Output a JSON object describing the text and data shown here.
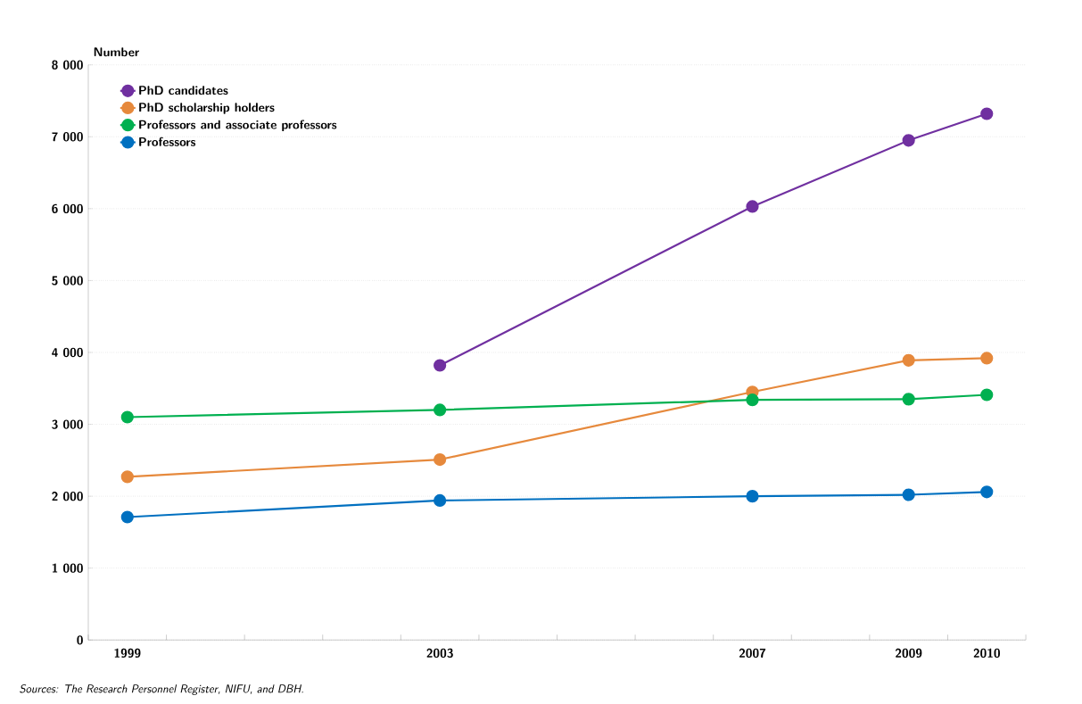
{
  "chart_data": {
    "type": "line",
    "categories": [
      "1999",
      null,
      null,
      null,
      "2003",
      null,
      null,
      null,
      "2007",
      null,
      "2009",
      "2010"
    ],
    "series": [
      {
        "name": "PhD candidates",
        "color": "#7030a0",
        "values": [
          null,
          null,
          null,
          null,
          3820,
          null,
          null,
          null,
          6030,
          null,
          6950,
          7320
        ]
      },
      {
        "name": "PhD scholarship holders",
        "color": "#e6893c",
        "values": [
          2270,
          null,
          null,
          null,
          2510,
          null,
          null,
          null,
          3450,
          null,
          3890,
          3920
        ]
      },
      {
        "name": "Professors and associate professors",
        "color": "#00b050",
        "values": [
          3100,
          null,
          null,
          null,
          3200,
          null,
          null,
          null,
          3340,
          null,
          3350,
          3410
        ]
      },
      {
        "name": "Professors",
        "color": "#0070c0",
        "values": [
          1710,
          null,
          null,
          null,
          1940,
          null,
          null,
          null,
          2000,
          null,
          2020,
          2060
        ]
      }
    ],
    "ylabel": "Number",
    "ylim": [
      0,
      8000
    ],
    "yticks": [
      0,
      {
        "value": 1000,
        "label": "1 000"
      },
      {
        "value": 2000,
        "label": "2 000"
      },
      {
        "value": 3000,
        "label": "3 000"
      },
      {
        "value": 4000,
        "label": "4 000"
      },
      {
        "value": 5000,
        "label": "5 000"
      },
      {
        "value": 6000,
        "label": "6 000"
      },
      {
        "value": 7000,
        "label": "7 000"
      },
      {
        "value": 8000,
        "label": "8 000"
      }
    ],
    "grid": "y",
    "legend": "top left",
    "marker": "circle",
    "line_style": "solid",
    "annotations": [
      "*Sources: The Research Personnel Register, NIFU, and DBH.*"
    ]
  }
}
